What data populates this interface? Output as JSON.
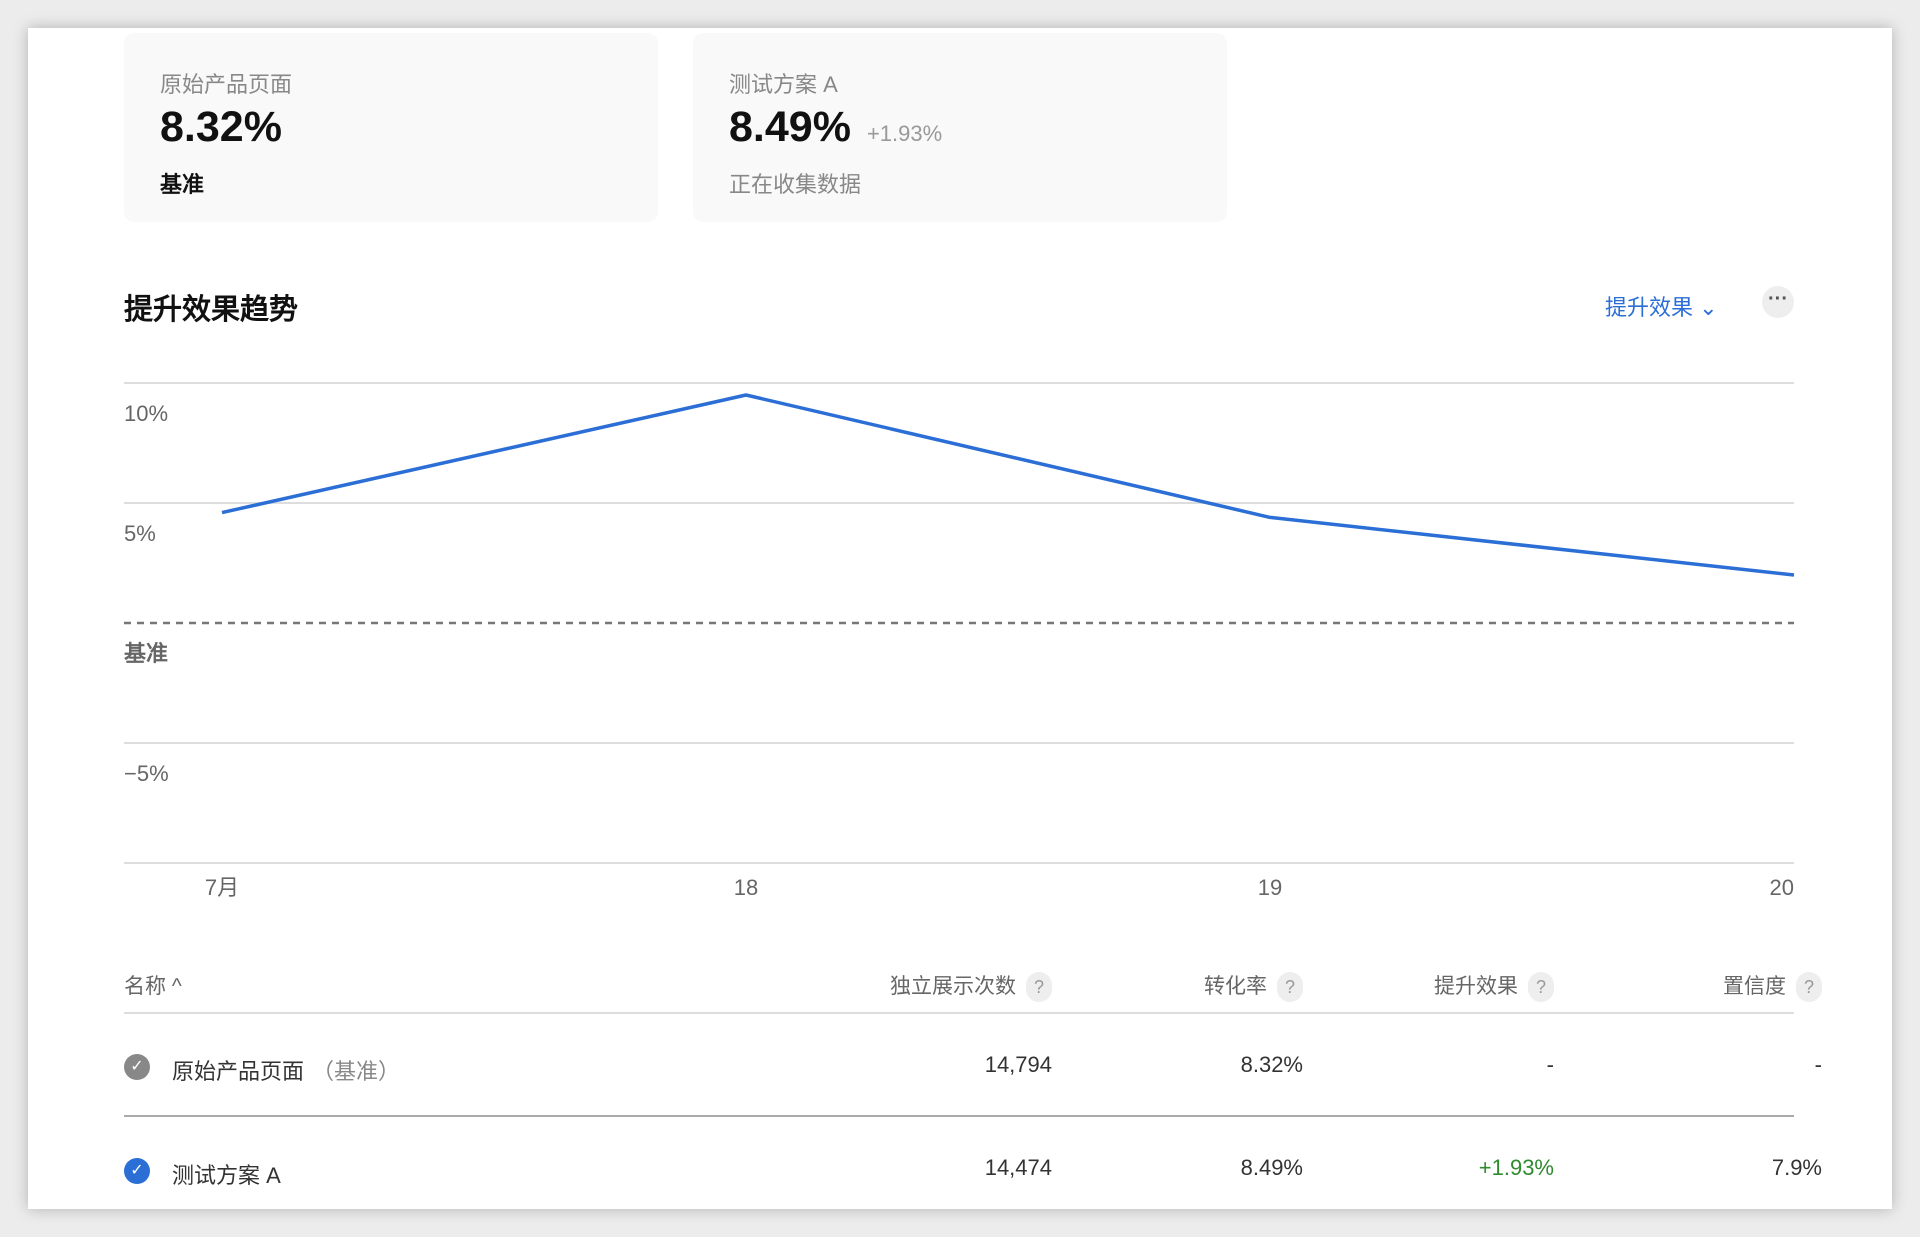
{
  "cards": [
    {
      "label": "原始产品页面",
      "value": "8.32%",
      "sub": "基准"
    },
    {
      "label": "测试方案 A",
      "value": "8.49%",
      "delta": "+1.93%",
      "sub": "正在收集数据"
    }
  ],
  "section": {
    "title": "提升效果趋势",
    "metric_select": "提升效果",
    "more_label": "···"
  },
  "chart_data": {
    "type": "line",
    "title": "提升效果趋势",
    "x": [
      "7月",
      "18",
      "19",
      "20"
    ],
    "series": [
      {
        "name": "测试方案 A",
        "values": [
          4.6,
          9.5,
          4.4,
          2.0
        ],
        "color": "#2b6fd6"
      }
    ],
    "y_ticks": [
      {
        "v": 10,
        "label": "10%"
      },
      {
        "v": 5,
        "label": "5%"
      },
      {
        "v": 0,
        "label": "基准"
      },
      {
        "v": -5,
        "label": "−5%"
      }
    ],
    "ylim": [
      -10,
      10
    ],
    "baseline": 0,
    "grid": true
  },
  "table": {
    "headers": [
      "名称 ^",
      "独立展示次数",
      "转化率",
      "提升效果",
      "置信度"
    ],
    "help": "?",
    "rows": [
      {
        "name": "原始产品页面",
        "tag": "（基准）",
        "impressions": "14,794",
        "rate": "8.32%",
        "lift": "-",
        "confidence": "-"
      },
      {
        "name": "测试方案 A",
        "tag": "",
        "impressions": "14,474",
        "rate": "8.49%",
        "lift": "+1.93%",
        "confidence": "7.9%"
      }
    ]
  }
}
